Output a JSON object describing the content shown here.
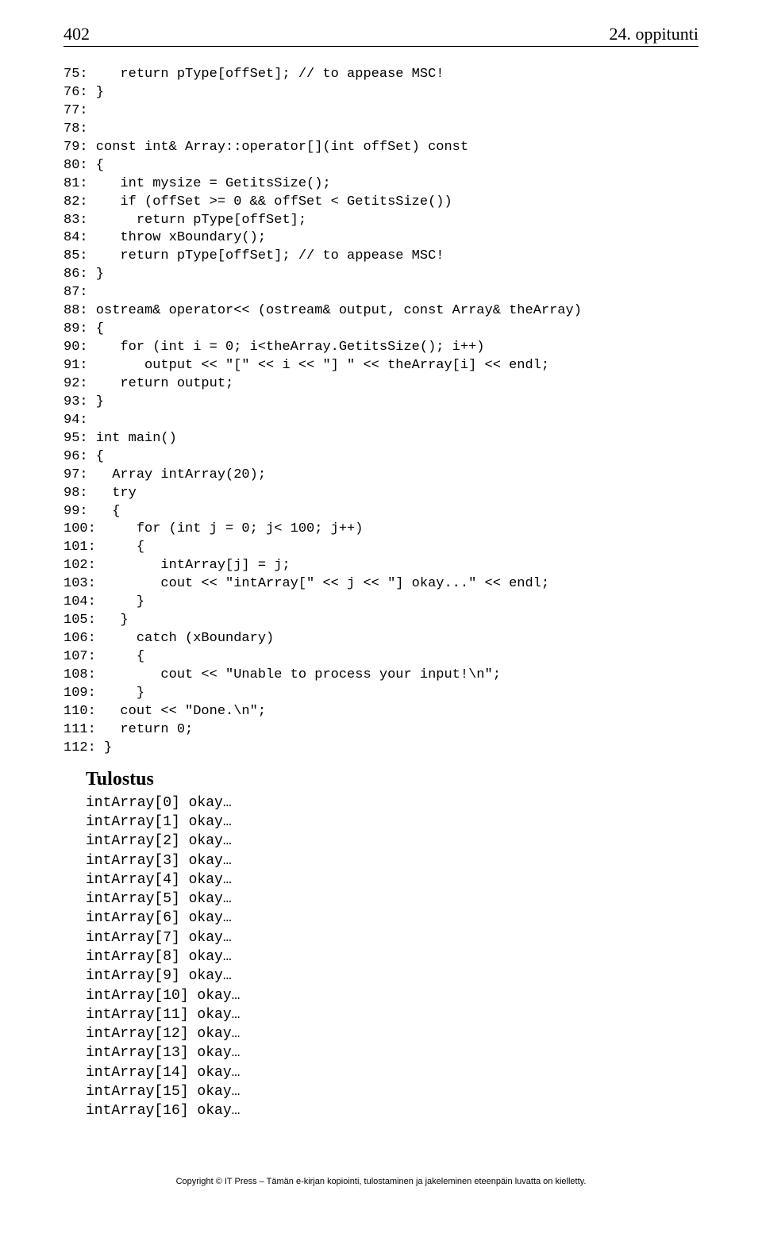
{
  "header": {
    "page_number": "402",
    "chapter": "24. oppitunti"
  },
  "code_lines": [
    "75:    return pType[offSet]; // to appease MSC!",
    "76: }",
    "77:",
    "78:",
    "79: const int& Array::operator[](int offSet) const",
    "80: {",
    "81:    int mysize = GetitsSize();",
    "82:    if (offSet >= 0 && offSet < GetitsSize())",
    "83:      return pType[offSet];",
    "84:    throw xBoundary();",
    "85:    return pType[offSet]; // to appease MSC!",
    "86: }",
    "87:",
    "88: ostream& operator<< (ostream& output, const Array& theArray)",
    "89: {",
    "90:    for (int i = 0; i<theArray.GetitsSize(); i++)",
    "91:       output << \"[\" << i << \"] \" << theArray[i] << endl;",
    "92:    return output;",
    "93: }",
    "94:",
    "95: int main()",
    "96: {",
    "97:   Array intArray(20);",
    "98:   try",
    "99:   {",
    "100:     for (int j = 0; j< 100; j++)",
    "101:     {",
    "102:        intArray[j] = j;",
    "103:        cout << \"intArray[\" << j << \"] okay...\" << endl;",
    "104:     }",
    "105:   }",
    "106:     catch (xBoundary)",
    "107:     {",
    "108:        cout << \"Unable to process your input!\\n\";",
    "109:     }",
    "110:   cout << \"Done.\\n\";",
    "111:   return 0;",
    "112: }"
  ],
  "output_heading": "Tulostus",
  "output_lines": [
    "intArray[0] okay…",
    "intArray[1] okay…",
    "intArray[2] okay…",
    "intArray[3] okay…",
    "intArray[4] okay…",
    "intArray[5] okay…",
    "intArray[6] okay…",
    "intArray[7] okay…",
    "intArray[8] okay…",
    "intArray[9] okay…",
    "intArray[10] okay…",
    "intArray[11] okay…",
    "intArray[12] okay…",
    "intArray[13] okay…",
    "intArray[14] okay…",
    "intArray[15] okay…",
    "intArray[16] okay…"
  ],
  "footer": "Copyright © IT Press – Tämän e-kirjan kopiointi, tulostaminen ja jakeleminen eteenpäin luvatta on kielletty."
}
